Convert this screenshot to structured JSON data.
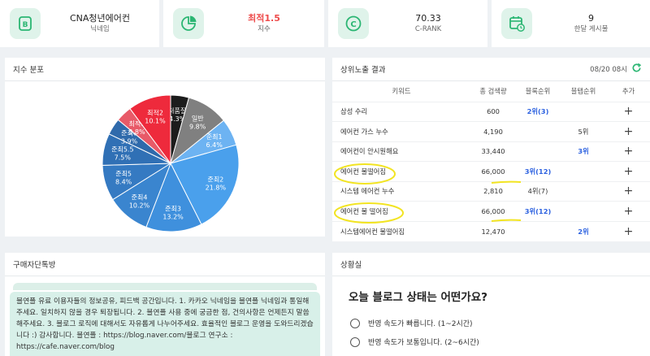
{
  "stats": [
    {
      "value": "CNA청년에어컨",
      "label": "닉네임",
      "icon": "blog-b-icon"
    },
    {
      "value": "최적1.5",
      "label": "지수",
      "icon": "pie-chart-icon"
    },
    {
      "value": "70.33",
      "label": "C-RANK",
      "icon": "c-rank-icon"
    },
    {
      "value": "9",
      "label": "한달 게시물",
      "icon": "calendar-icon"
    }
  ],
  "index_distribution": {
    "title": "지수 분포"
  },
  "chart_data": {
    "type": "pie",
    "title": "",
    "slices": [
      {
        "label": "저품질",
        "value": 4.3,
        "color": "#1c1c1c"
      },
      {
        "label": "일반",
        "value": 9.8,
        "color": "#808080"
      },
      {
        "label": "준최1",
        "value": 6.4,
        "color": "#6db3f2"
      },
      {
        "label": "준최2",
        "value": 21.8,
        "color": "#4aa0ec"
      },
      {
        "label": "준최3",
        "value": 13.2,
        "color": "#3f90dd"
      },
      {
        "label": "준최4",
        "value": 10.2,
        "color": "#3a85cf"
      },
      {
        "label": "준최5",
        "value": 8.4,
        "color": "#357ac2"
      },
      {
        "label": "준최5.5",
        "value": 7.5,
        "color": "#3070b5"
      },
      {
        "label": "준최6",
        "value": 3.9,
        "color": "#2f6aab"
      },
      {
        "label": "최적1",
        "value": 3.8,
        "color": "#e85a68"
      },
      {
        "label": "최적2",
        "value": 10.1,
        "color": "#ee2a3c"
      }
    ]
  },
  "ranking": {
    "title": "상위노출 결과",
    "timestamp": "08/20 08시",
    "columns": [
      "키워드",
      "총 검색량",
      "블록순위",
      "블탭순위",
      "추가"
    ],
    "rows": [
      {
        "keyword": "삼성 수리",
        "volume": "600",
        "block": "2위(3)",
        "tab": ""
      },
      {
        "keyword": "에어컨 가스 누수",
        "volume": "4,190",
        "block": "",
        "tab": "5위"
      },
      {
        "keyword": "에어컨이 안시원해요",
        "volume": "33,440",
        "block": "",
        "tab": "3위"
      },
      {
        "keyword": "에어컨 물떨어짐",
        "volume": "66,000",
        "block": "3위(12)",
        "tab": ""
      },
      {
        "keyword": "시스템 에어컨 누수",
        "volume": "2,810",
        "block": "4위(7)",
        "tab": ""
      },
      {
        "keyword": "에어컨 물 떨어짐",
        "volume": "66,000",
        "block": "3위(12)",
        "tab": ""
      },
      {
        "keyword": "시스템에어컨 물떨어짐",
        "volume": "12,470",
        "block": "",
        "tab": "2위"
      }
    ],
    "add_symbol": "+"
  },
  "chat": {
    "title": "구매자단톡방",
    "notice": "블연플 유료 이용자들의 정보공유, 피드백 공간입니다. 1. 카카오 닉네임을 블연플 닉네임과 통일해주세요. 일치하지 않을 경우 퇴장됩니다. 2. 블연플 사용 중에 궁금한 점, 건의사항은 언제든지 말씀해주세요. 3. 블로그 로직에 대해서도 자유롭게 나누어주세요. 효율적인 블로그 운영을 도와드리겠습니다 :) 감사합니다. 블연플 : https://blog.naver.com/블로그 연구소 : https://cafe.naver.com/blog"
  },
  "survey": {
    "title": "상황실",
    "question": "오늘 블로그 상태는 어떤가요?",
    "options": [
      "반영 속도가 빠릅니다. (1~2시간)",
      "반영 속도가 보통입니다. (2~6시간)"
    ]
  },
  "colors": {
    "accent_green": "#2bb673",
    "icon_bg": "#dff3ea",
    "highlight_yellow": "#f2e422",
    "rank_blue": "#2d62e0",
    "warn_red": "#ee4b4b"
  }
}
